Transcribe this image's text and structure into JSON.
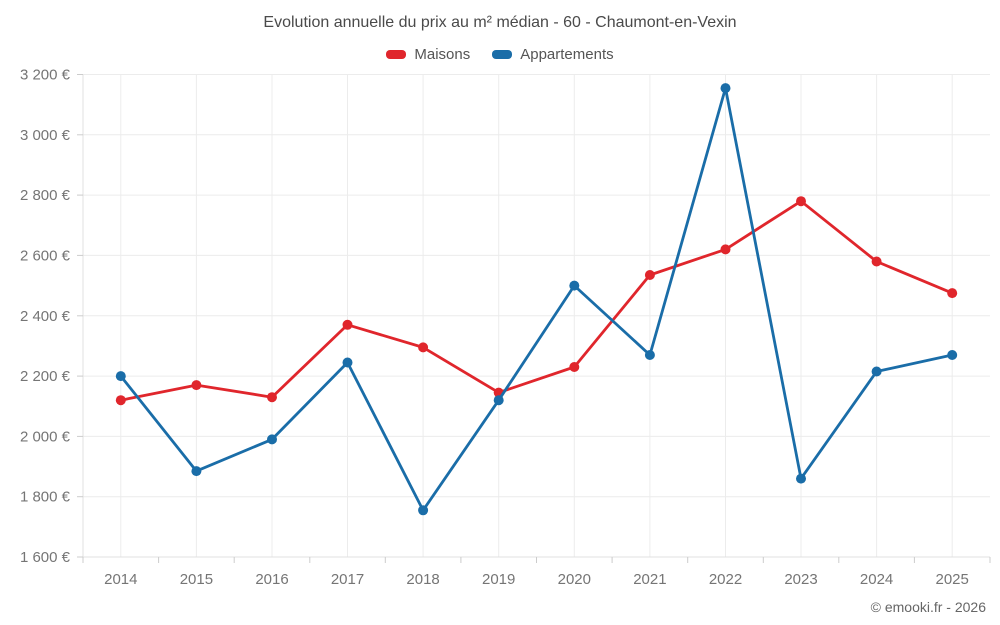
{
  "title": "Evolution annuelle du prix au m² médian - 60 - Chaumont-en-Vexin",
  "legend": {
    "items": [
      {
        "label": "Maisons",
        "color": "#e0262c"
      },
      {
        "label": "Appartements",
        "color": "#1a6da8"
      }
    ]
  },
  "copyright": "© emooki.fr - 2026",
  "chart_data": {
    "type": "line",
    "title": "Evolution annuelle du prix au m² médian - 60 - Chaumont-en-Vexin",
    "x": [
      2014,
      2015,
      2016,
      2017,
      2018,
      2019,
      2020,
      2021,
      2022,
      2023,
      2024,
      2025
    ],
    "series": [
      {
        "name": "Maisons",
        "color": "#e0262c",
        "values": [
          2120,
          2170,
          2130,
          2370,
          2295,
          2145,
          2230,
          2535,
          2620,
          2780,
          2580,
          2475
        ]
      },
      {
        "name": "Appartements",
        "color": "#1a6da8",
        "values": [
          2200,
          1885,
          1990,
          2245,
          1755,
          2120,
          2500,
          2270,
          3155,
          1860,
          2215,
          2270
        ]
      }
    ],
    "ylim": [
      1600,
      3200
    ],
    "ytick_step": 200,
    "ytick_labels": [
      "1 600 €",
      "1 800 €",
      "2 000 €",
      "2 200 €",
      "2 400 €",
      "2 600 €",
      "2 800 €",
      "3 000 €",
      "3 200 €"
    ],
    "xlabel": "",
    "ylabel": "",
    "grid": true,
    "legend_position": "top"
  },
  "colors": {
    "grid_line": "#ececec",
    "axis_line": "#e0e0e0",
    "tick_mark": "#cccccc",
    "tick_text": "#757575",
    "title_text": "#4a4a4a"
  }
}
